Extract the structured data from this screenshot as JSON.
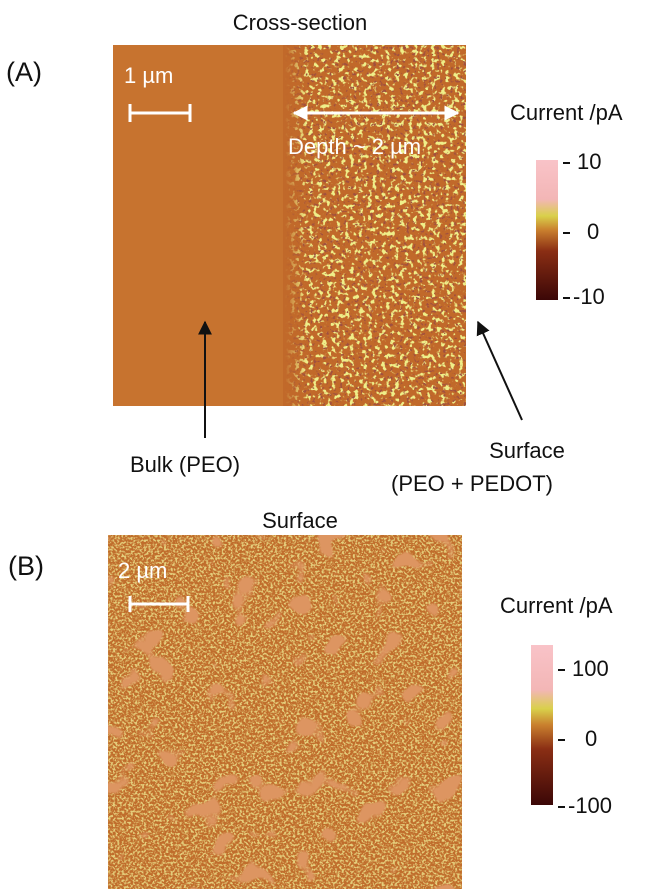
{
  "panel_a": {
    "label": "(A)",
    "title": "Cross-section",
    "scale_bar": "1 µm",
    "depth_label": "Depth ~ 2 µm",
    "colorbar_title": "Current /pA",
    "colorbar_ticks": [
      10,
      0,
      -10
    ],
    "annotations": [
      "Bulk (PEO)",
      "Surface",
      "(PEO + PEDOT)"
    ]
  },
  "panel_b": {
    "label": "(B)",
    "title": "Surface",
    "scale_bar": "2 µm",
    "colorbar_title": "Current /pA",
    "colorbar_ticks": [
      100,
      0,
      -100
    ]
  }
}
